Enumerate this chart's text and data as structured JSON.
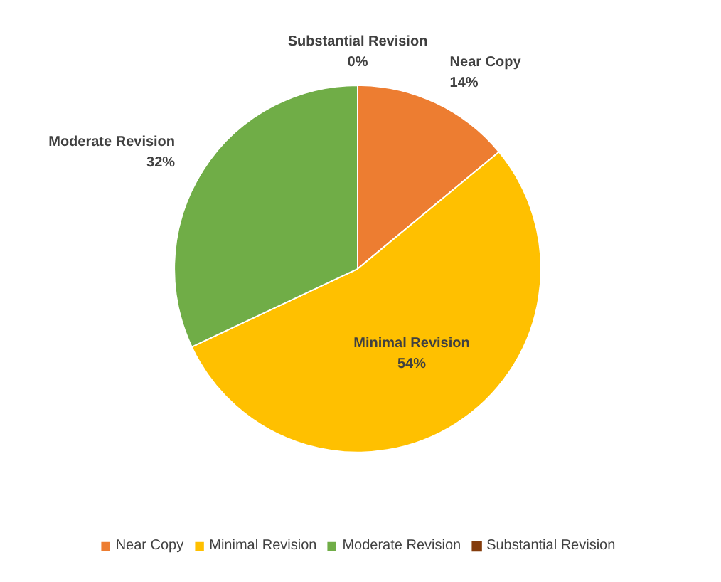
{
  "chart_data": {
    "type": "pie",
    "categories": [
      "Near Copy",
      "Minimal Revision",
      "Moderate Revision",
      "Substantial Revision"
    ],
    "values": [
      14,
      54,
      32,
      0
    ],
    "colors": [
      "#ed7d31",
      "#ffc000",
      "#70ad47",
      "#843c0c"
    ],
    "value_labels": [
      "14%",
      "54%",
      "32%",
      "0%"
    ],
    "legend": "bottom"
  }
}
